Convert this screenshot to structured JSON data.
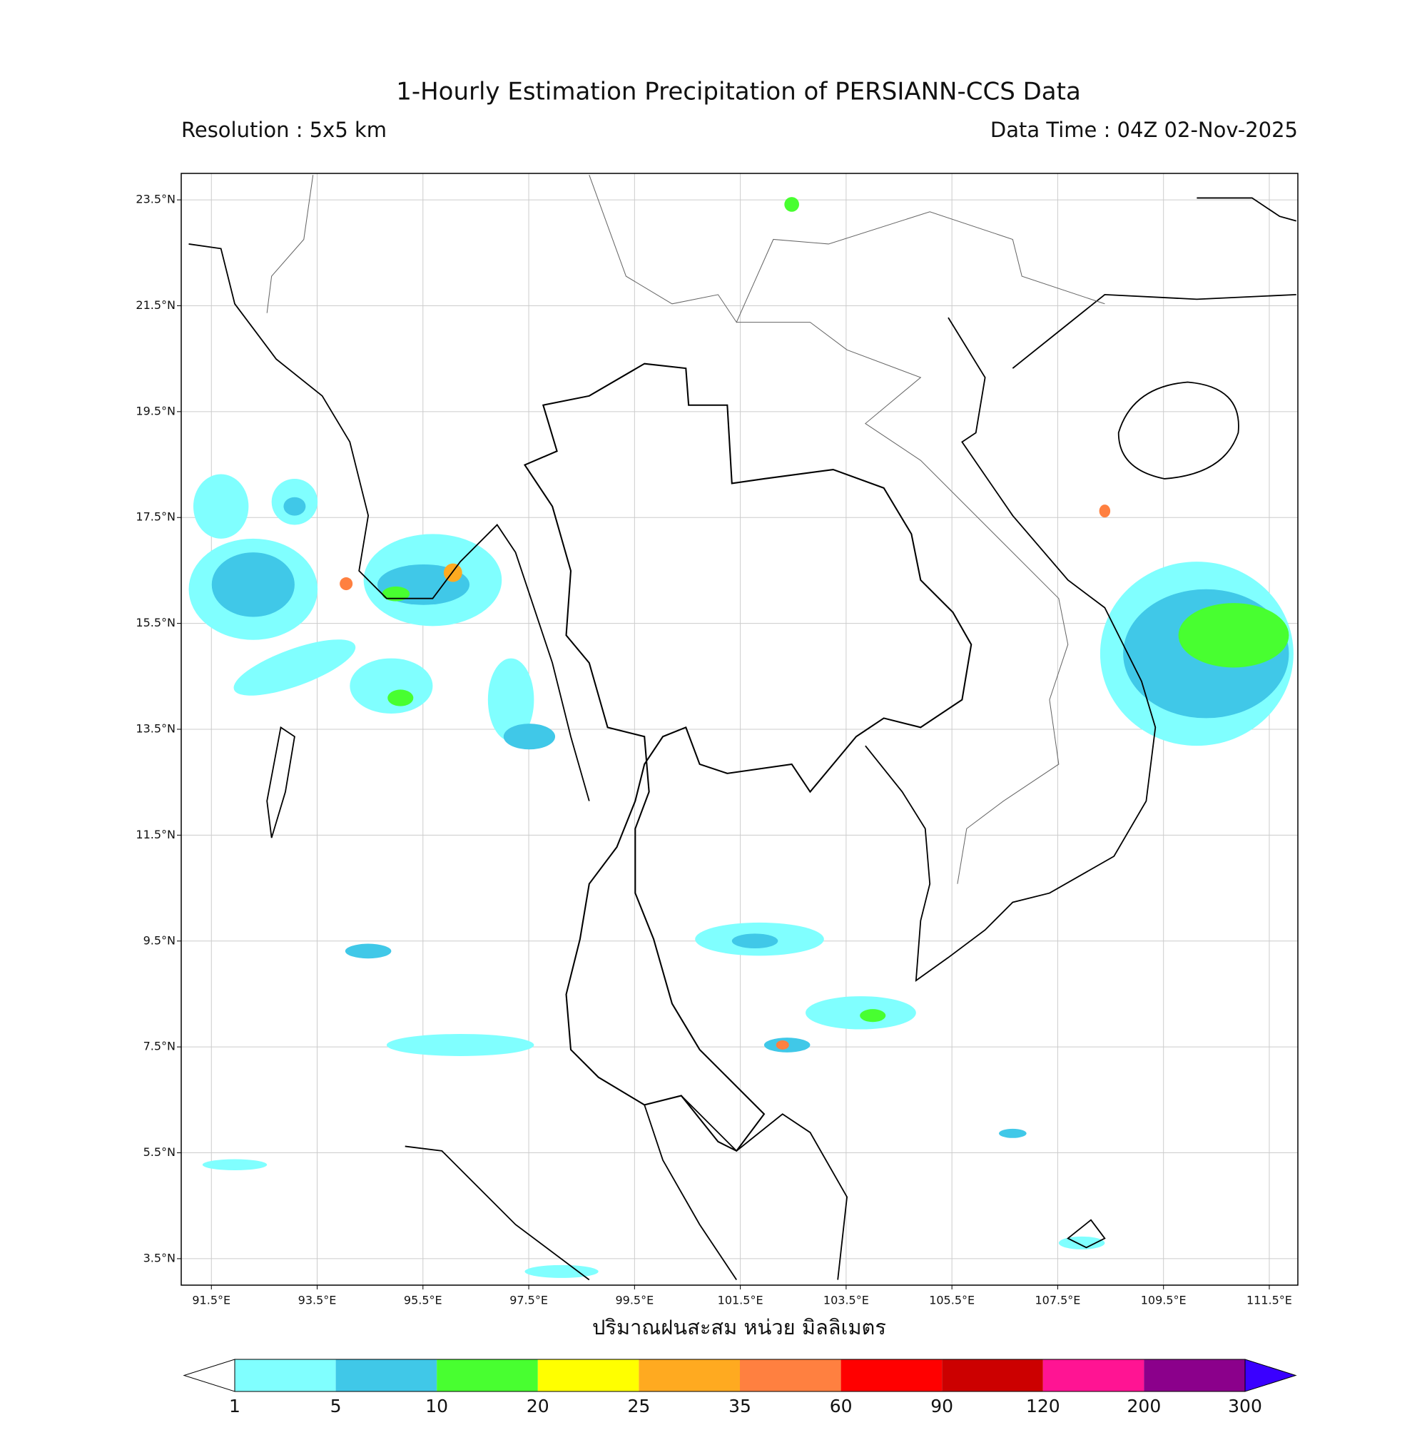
{
  "map": {
    "title": "1-Hourly Estimation Precipitation of PERSIANN-CCS Data",
    "subtitle_left": "Resolution : 5x5 km",
    "subtitle_right": "Data Time : 04Z 02-Nov-2025",
    "xlabel": "ปริมาณฝนสะสม หน่วย มิลลิเมตร",
    "xlim": [
      90.93,
      112.04
    ],
    "ylim": [
      3.0,
      24.0
    ],
    "grid": true,
    "xticks": [
      {
        "value": 91.5,
        "label": "91.5°E"
      },
      {
        "value": 93.5,
        "label": "93.5°E"
      },
      {
        "value": 95.5,
        "label": "95.5°E"
      },
      {
        "value": 97.5,
        "label": "97.5°E"
      },
      {
        "value": 99.5,
        "label": "99.5°E"
      },
      {
        "value": 101.5,
        "label": "101.5°E"
      },
      {
        "value": 103.5,
        "label": "103.5°E"
      },
      {
        "value": 105.5,
        "label": "105.5°E"
      },
      {
        "value": 107.5,
        "label": "107.5°E"
      },
      {
        "value": 109.5,
        "label": "109.5°E"
      },
      {
        "value": 111.5,
        "label": "111.5°E"
      }
    ],
    "yticks": [
      {
        "value": 23.5,
        "label": "23.5°N"
      },
      {
        "value": 21.5,
        "label": "21.5°N"
      },
      {
        "value": 19.5,
        "label": "19.5°N"
      },
      {
        "value": 17.5,
        "label": "17.5°N"
      },
      {
        "value": 15.5,
        "label": "15.5°N"
      },
      {
        "value": 13.5,
        "label": "13.5°N"
      },
      {
        "value": 11.5,
        "label": "11.5°N"
      },
      {
        "value": 9.5,
        "label": "9.5°N"
      },
      {
        "value": 7.5,
        "label": "7.5°N"
      },
      {
        "value": 5.5,
        "label": "5.5°N"
      },
      {
        "value": 3.5,
        "label": "3.5°N"
      }
    ],
    "colorbar": {
      "levels": [
        1,
        5,
        10,
        20,
        25,
        35,
        60,
        90,
        120,
        200,
        300
      ],
      "colors": [
        "#80ffff",
        "#40c8e8",
        "#48ff30",
        "#ffff00",
        "#ffaa20",
        "#ff8040",
        "#ff0000",
        "#cc0000",
        "#ff1493",
        "#8b008b"
      ],
      "under_color": "#ffffff",
      "over_color": "#3a00ff"
    }
  }
}
